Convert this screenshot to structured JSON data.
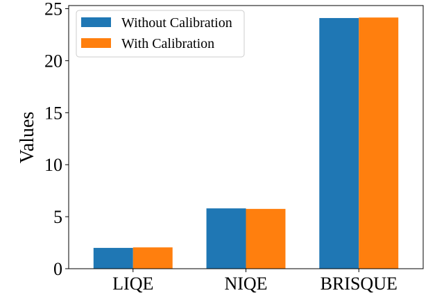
{
  "chart_data": {
    "type": "bar",
    "title": "",
    "xlabel": "",
    "ylabel": "Values",
    "categories": [
      "LIQE",
      "NIQE",
      "BRISQUE"
    ],
    "series": [
      {
        "name": "Without Calibration",
        "values": [
          2.0,
          5.8,
          24.1
        ],
        "color": "#1f77b4"
      },
      {
        "name": "With Calibration",
        "values": [
          2.05,
          5.75,
          24.15
        ],
        "color": "#ff7f0e"
      }
    ],
    "ylim": [
      0,
      25.3
    ],
    "yticks": [
      0,
      5,
      10,
      15,
      20,
      25
    ],
    "grid": false,
    "legend_position": "top-left"
  }
}
